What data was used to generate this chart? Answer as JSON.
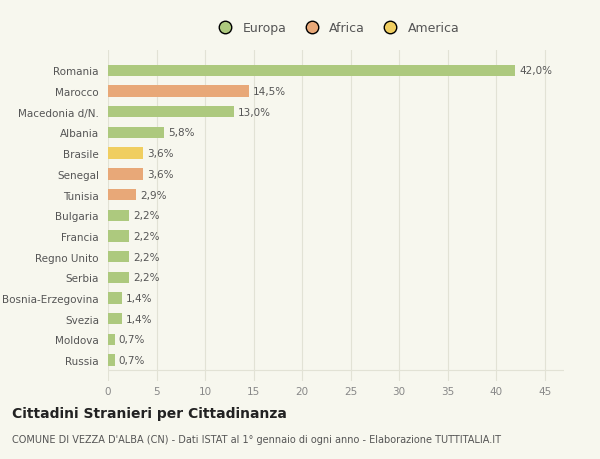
{
  "countries": [
    "Russia",
    "Moldova",
    "Svezia",
    "Bosnia-Erzegovina",
    "Serbia",
    "Regno Unito",
    "Francia",
    "Bulgaria",
    "Tunisia",
    "Senegal",
    "Brasile",
    "Albania",
    "Macedonia d/N.",
    "Marocco",
    "Romania"
  ],
  "values": [
    0.7,
    0.7,
    1.4,
    1.4,
    2.2,
    2.2,
    2.2,
    2.2,
    2.9,
    3.6,
    3.6,
    5.8,
    13.0,
    14.5,
    42.0
  ],
  "labels": [
    "0,7%",
    "0,7%",
    "1,4%",
    "1,4%",
    "2,2%",
    "2,2%",
    "2,2%",
    "2,2%",
    "2,9%",
    "3,6%",
    "3,6%",
    "5,8%",
    "13,0%",
    "14,5%",
    "42,0%"
  ],
  "continents": [
    "Europa",
    "Europa",
    "Europa",
    "Europa",
    "Europa",
    "Europa",
    "Europa",
    "Europa",
    "Africa",
    "Africa",
    "America",
    "Europa",
    "Europa",
    "Africa",
    "Europa"
  ],
  "colors": {
    "Europa": "#adc97e",
    "Africa": "#e8a878",
    "America": "#f0ce60"
  },
  "bg_color": "#f7f7ee",
  "grid_color": "#e2e2d5",
  "title": "Cittadini Stranieri per Cittadinanza",
  "subtitle": "COMUNE DI VEZZA D'ALBA (CN) - Dati ISTAT al 1° gennaio di ogni anno - Elaborazione TUTTITALIA.IT",
  "xlim": [
    0,
    47
  ],
  "xticks": [
    0,
    5,
    10,
    15,
    20,
    25,
    30,
    35,
    40,
    45
  ],
  "bar_height": 0.55,
  "label_fontsize": 7.5,
  "tick_fontsize": 7.5,
  "title_fontsize": 10,
  "subtitle_fontsize": 7
}
